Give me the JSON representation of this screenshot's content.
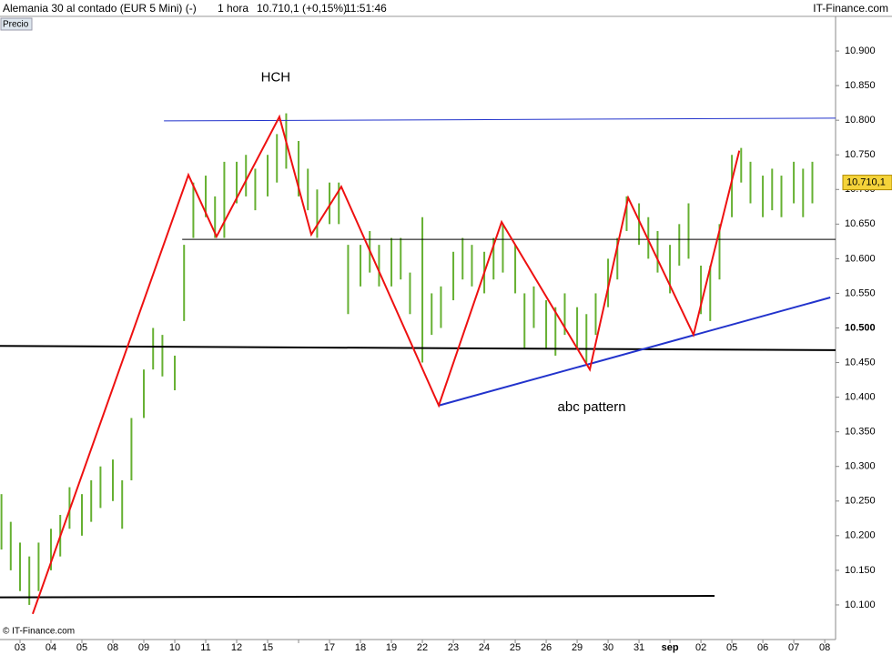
{
  "chart_data": {
    "type": "ohlc",
    "title": "Alemania 30 al contado (EUR 5 Mini) (-)",
    "interval": "1 hora",
    "quote": "10.710,1 (+0,15%)",
    "time": "11:51:46",
    "brand": "IT-Finance.com",
    "copyright": "© IT-Finance.com",
    "categories": [
      "03",
      "04",
      "05",
      "08",
      "09",
      "10",
      "11",
      "12",
      "15",
      null,
      "17",
      "18",
      "19",
      "22",
      "23",
      "24",
      "25",
      "26",
      "29",
      "30",
      "31",
      "sep",
      "02",
      "05",
      "06",
      "07",
      "08"
    ],
    "xlim": [
      -0.647,
      26.35
    ],
    "ylim": [
      10.05,
      10.95
    ],
    "yticks": [
      {
        "value": 10.1,
        "label": "10.100"
      },
      {
        "value": 10.15,
        "label": "10.150"
      },
      {
        "value": 10.2,
        "label": "10.200"
      },
      {
        "value": 10.25,
        "label": "10.250"
      },
      {
        "value": 10.3,
        "label": "10.300"
      },
      {
        "value": 10.35,
        "label": "10.350"
      },
      {
        "value": 10.4,
        "label": "10.400"
      },
      {
        "value": 10.45,
        "label": "10.450"
      },
      {
        "value": 10.5,
        "label": "10.500"
      },
      {
        "value": 10.55,
        "label": "10.550"
      },
      {
        "value": 10.6,
        "label": "10.600"
      },
      {
        "value": 10.65,
        "label": "10.650"
      },
      {
        "value": 10.7,
        "label": "10.700"
      },
      {
        "value": 10.75,
        "label": "10.750"
      },
      {
        "value": 10.8,
        "label": "10.800"
      },
      {
        "value": 10.85,
        "label": "10.850"
      },
      {
        "value": 10.9,
        "label": "10.900"
      }
    ],
    "bold_tick": 8,
    "last": {
      "value": 10.7101,
      "label": "10.710,1"
    },
    "series": [
      {
        "name": "Precio",
        "color": "#66b032",
        "x": [
          -0.6,
          -0.3,
          0,
          0.3,
          0.6,
          1,
          1.3,
          1.6,
          2,
          2.3,
          2.6,
          3,
          3.3,
          3.6,
          4,
          4.3,
          4.6,
          5,
          5.3,
          5.6,
          6,
          6.3,
          6.6,
          7,
          7.3,
          7.6,
          8,
          8.3,
          8.6,
          9,
          9.3,
          9.6,
          10,
          10.3,
          10.6,
          11,
          11.3,
          11.6,
          12,
          12.3,
          12.6,
          13,
          13.3,
          13.6,
          14,
          14.3,
          14.6,
          15,
          15.3,
          15.6,
          16,
          16.3,
          16.6,
          17,
          17.3,
          17.6,
          18,
          18.3,
          18.6,
          19,
          19.3,
          19.6,
          20,
          20.3,
          20.6,
          21,
          21.3,
          21.6,
          22,
          22.3,
          22.6,
          23,
          23.3,
          23.6,
          24,
          24.3,
          24.6,
          25,
          25.3,
          25.6
        ],
        "high": [
          10.26,
          10.22,
          10.19,
          10.17,
          10.19,
          10.21,
          10.23,
          10.27,
          10.26,
          10.28,
          10.3,
          10.31,
          10.28,
          10.37,
          10.44,
          10.5,
          10.49,
          10.46,
          10.62,
          10.71,
          10.72,
          10.69,
          10.74,
          10.74,
          10.75,
          10.73,
          10.75,
          10.78,
          10.81,
          10.77,
          10.73,
          10.7,
          10.71,
          10.71,
          10.62,
          10.62,
          10.64,
          10.62,
          10.63,
          10.63,
          10.58,
          10.66,
          10.55,
          10.56,
          10.61,
          10.63,
          10.62,
          10.61,
          10.63,
          10.65,
          10.62,
          10.55,
          10.56,
          10.54,
          10.53,
          10.55,
          10.53,
          10.52,
          10.55,
          10.6,
          10.63,
          10.69,
          10.68,
          10.66,
          10.64,
          10.62,
          10.65,
          10.68,
          10.59,
          10.59,
          10.65,
          10.75,
          10.76,
          10.74,
          10.72,
          10.73,
          10.72,
          10.74,
          10.73,
          10.74
        ],
        "low": [
          10.18,
          10.15,
          10.12,
          10.1,
          10.12,
          10.15,
          10.17,
          10.21,
          10.2,
          10.22,
          10.24,
          10.25,
          10.21,
          10.28,
          10.37,
          10.44,
          10.43,
          10.41,
          10.51,
          10.63,
          10.66,
          10.63,
          10.63,
          10.68,
          10.69,
          10.67,
          10.69,
          10.71,
          10.73,
          10.69,
          10.67,
          10.63,
          10.65,
          10.65,
          10.52,
          10.56,
          10.58,
          10.56,
          10.56,
          10.57,
          10.52,
          10.45,
          10.49,
          10.5,
          10.54,
          10.57,
          10.56,
          10.55,
          10.57,
          10.58,
          10.55,
          10.47,
          10.5,
          10.47,
          10.46,
          10.49,
          10.47,
          10.45,
          10.49,
          10.53,
          10.57,
          10.64,
          10.62,
          10.6,
          10.58,
          10.55,
          10.59,
          10.6,
          10.52,
          10.51,
          10.57,
          10.66,
          10.71,
          10.68,
          10.66,
          10.67,
          10.66,
          10.68,
          10.66,
          10.68
        ]
      }
    ],
    "lines": [
      {
        "color": "#2233cc",
        "width": 1,
        "x": [
          4.65,
          26.35
        ],
        "y": [
          10.799,
          10.803
        ]
      },
      {
        "color": "#000000",
        "width": 1,
        "x": [
          5.24,
          26.35
        ],
        "y": [
          10.628,
          10.628
        ]
      },
      {
        "color": "#000000",
        "width": 2,
        "x": [
          -0.647,
          26.35
        ],
        "y": [
          10.474,
          10.468
        ]
      },
      {
        "color": "#000000",
        "width": 2,
        "x": [
          -0.647,
          22.44
        ],
        "y": [
          10.111,
          10.113
        ]
      },
      {
        "color": "#2233cc",
        "width": 2,
        "x": [
          13.53,
          26.18
        ],
        "y": [
          10.388,
          10.544
        ]
      },
      {
        "color": "#ee1111",
        "width": 2,
        "x": [
          0.41,
          5.44,
          6.35,
          8.38,
          9.41,
          10.38,
          13.53,
          15.56,
          18.41,
          19.65,
          21.76,
          23.24
        ],
        "y": [
          10.087,
          10.721,
          10.632,
          10.805,
          10.635,
          10.704,
          10.388,
          10.653,
          10.44,
          10.688,
          10.49,
          10.756
        ]
      }
    ],
    "annotations": [
      {
        "text": "HCH",
        "x": 8.26,
        "y": 10.861
      },
      {
        "text": "abc  pattern",
        "x": 18.47,
        "y": 10.385
      }
    ]
  }
}
